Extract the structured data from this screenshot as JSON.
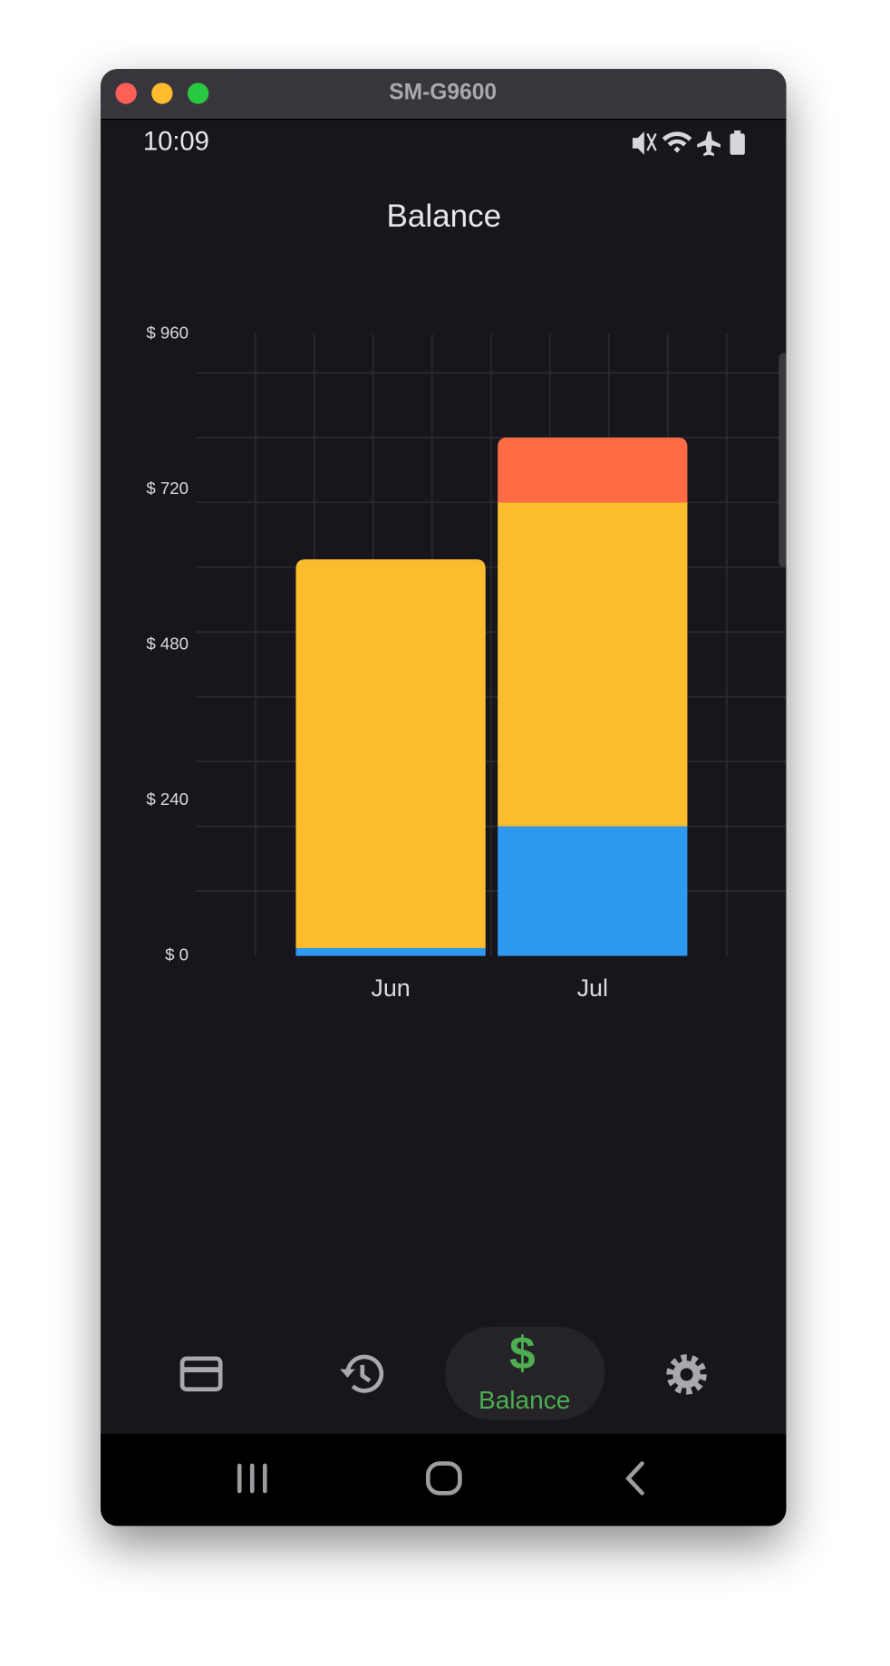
{
  "window": {
    "title": "SM-G9600"
  },
  "status_bar": {
    "time": "10:09"
  },
  "header": {
    "title": "Balance"
  },
  "nav": {
    "active_label": "Balance"
  },
  "chart_data": {
    "type": "stacked_bar",
    "categories": [
      "Jun",
      "Jul"
    ],
    "series": [
      {
        "color": "#2d9af0",
        "values": [
          12,
          200
        ]
      },
      {
        "color": "#fbbd2e",
        "values": [
          600,
          500
        ]
      },
      {
        "color": "#ff6b45",
        "values": [
          0,
          100
        ]
      }
    ],
    "ylim": [
      0,
      960
    ],
    "yticks": [
      {
        "value": 0,
        "label": "$ 0"
      },
      {
        "value": 240,
        "label": "$ 240"
      },
      {
        "value": 480,
        "label": "$ 480"
      },
      {
        "value": 720,
        "label": "$ 720"
      },
      {
        "value": 960,
        "label": "$ 960"
      }
    ],
    "ygrid": [
      100,
      200,
      300,
      400,
      500,
      600,
      700,
      800,
      900
    ],
    "grid": true
  }
}
